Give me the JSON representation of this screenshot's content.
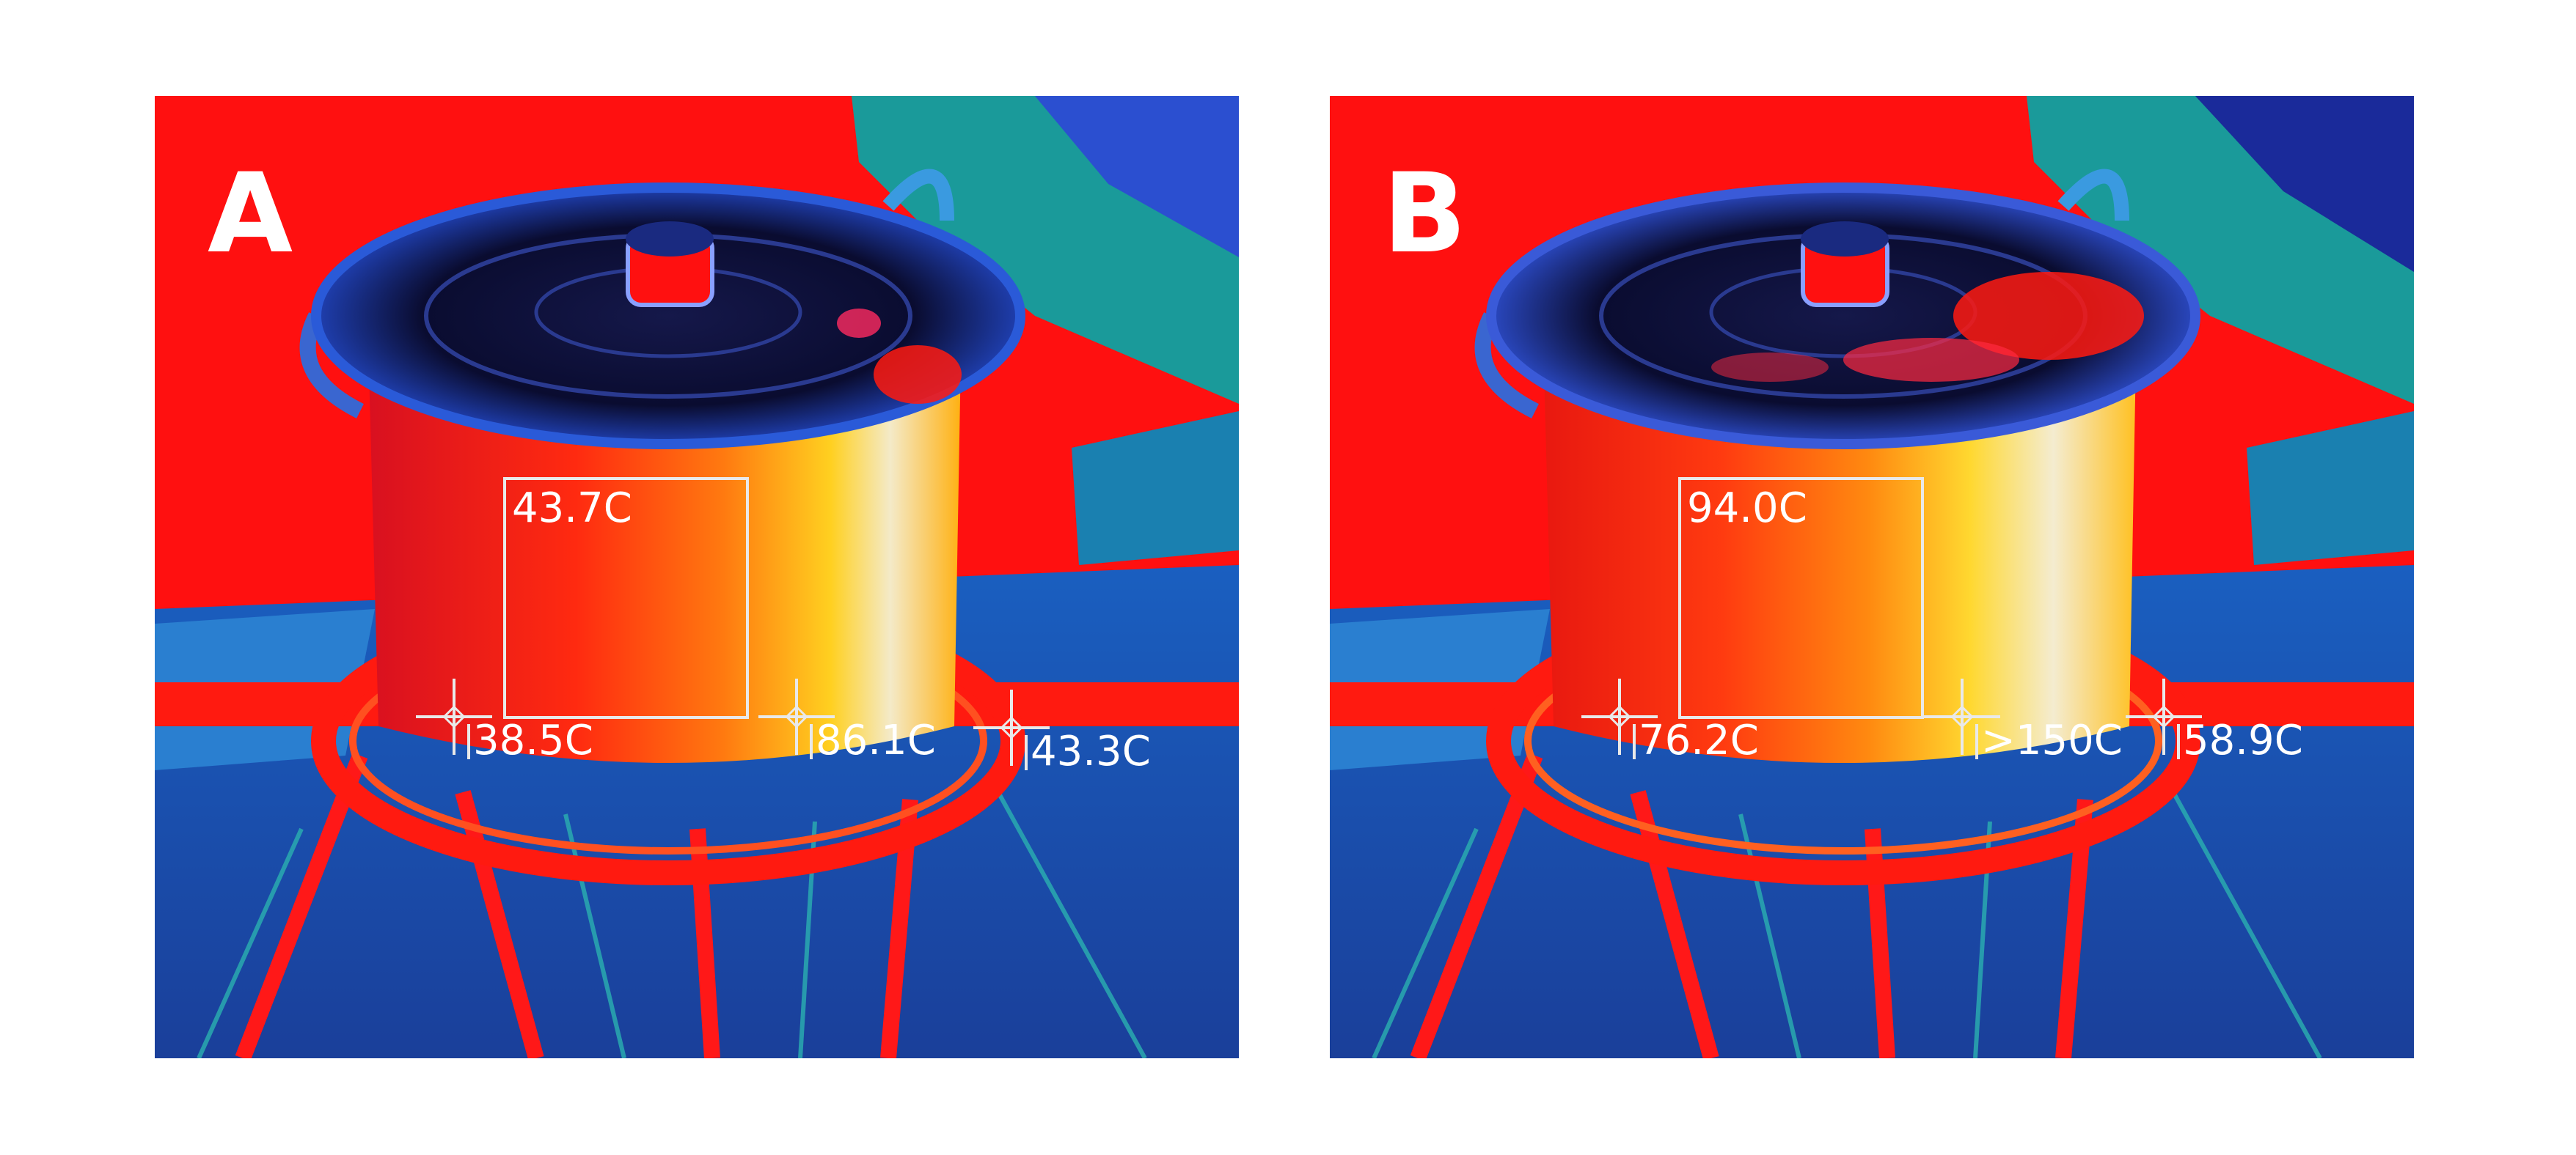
{
  "panels": [
    {
      "letter": "A",
      "roi_label": "43.7C",
      "spots": [
        "38.5C",
        "86.1C",
        "43.3C"
      ]
    },
    {
      "letter": "B",
      "roi_label": "94.0C",
      "spots": [
        "76.2C",
        ">150C",
        "58.9C"
      ]
    }
  ]
}
